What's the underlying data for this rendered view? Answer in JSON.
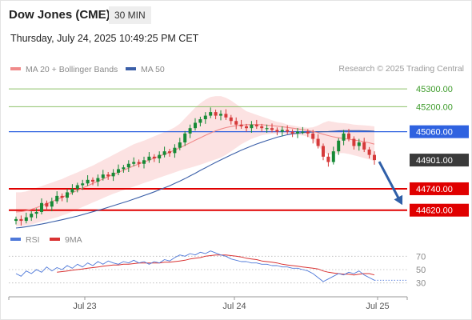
{
  "header": {
    "title": "Dow Jones (CME)",
    "timeframe": "30 MIN",
    "datetime": "Thursday, July 24, 2025 10:49:25 PM CET",
    "copyright": "Research © 2025 Trading Central"
  },
  "colors": {
    "support_red": "#e00000",
    "pivot_blue": "#2f62e0",
    "resistance_green": "#8dc06a",
    "resistance_text": "#3d9b2a",
    "ma20": "#f08a8a",
    "ma50": "#3b5fa8",
    "bollinger_fill": "#fbd8d8",
    "candle_up": "#168a36",
    "candle_down": "#d63a3a",
    "rsi": "#4f79d9",
    "rsi_ma": "#d93333",
    "arrow": "#2f5fa8",
    "last_price_box": "#3a3a3a"
  },
  "chart_data": [
    {
      "type": "candlestick",
      "legend": [
        {
          "label": "MA 20 + Bollinger Bands",
          "color": "#f08a8a"
        },
        {
          "label": "MA 50",
          "color": "#3b5fa8"
        }
      ],
      "ylim": [
        44520,
        45350
      ],
      "x_ticks": [
        "Jul 23",
        "Jul 24",
        "Jul 25"
      ],
      "levels": [
        {
          "label": "45300.00",
          "value": 45300,
          "kind": "resistance"
        },
        {
          "label": "45200.00",
          "value": 45200,
          "kind": "resistance"
        },
        {
          "label": "45060.00",
          "value": 45060,
          "kind": "pivot"
        },
        {
          "label": "44740.00",
          "value": 44740,
          "kind": "support"
        },
        {
          "label": "44620.00",
          "value": 44620,
          "kind": "support"
        }
      ],
      "last_price": {
        "label": "44901.00",
        "value": 44901
      },
      "projection": {
        "from": 44901,
        "to": 44640,
        "direction": "down"
      },
      "close": [
        44570,
        44560,
        44580,
        44600,
        44610,
        44660,
        44640,
        44670,
        44700,
        44690,
        44720,
        44740,
        44760,
        44770,
        44790,
        44780,
        44800,
        44820,
        44810,
        44830,
        44850,
        44860,
        44880,
        44890,
        44880,
        44900,
        44920,
        44910,
        44930,
        44950,
        44940,
        44970,
        45000,
        45050,
        45080,
        45110,
        45130,
        45150,
        45170,
        45150,
        45160,
        45140,
        45120,
        45100,
        45090,
        45080,
        45100,
        45090,
        45080,
        45080,
        45070,
        45060,
        45070,
        45060,
        45050,
        45060,
        45060,
        45050,
        45020,
        44980,
        44920,
        44890,
        44950,
        45010,
        45050,
        45020,
        44980,
        45000,
        44960,
        44930,
        44901
      ],
      "ma20": [
        44610,
        44612,
        44617,
        44625,
        44634,
        44645,
        44656,
        44668,
        44680,
        44692,
        44705,
        44718,
        44731,
        44744,
        44757,
        44770,
        44782,
        44795,
        44808,
        44820,
        44832,
        44844,
        44856,
        44868,
        44879,
        44890,
        44901,
        44912,
        44923,
        44934,
        44945,
        44957,
        44970,
        44984,
        44998,
        45012,
        45026,
        45040,
        45053,
        45065,
        45075,
        45083,
        45089,
        45094,
        45097,
        45099,
        45100,
        45100,
        45099,
        45097,
        45094,
        45091,
        45088,
        45084,
        45080,
        45076,
        45072,
        45067,
        45061,
        45054,
        45046,
        45038,
        45031,
        45026,
        45022,
        45018,
        45013,
        45009,
        45004,
        44998,
        44990
      ],
      "bb_upper": [
        44720,
        44720,
        44725,
        44735,
        44745,
        44755,
        44765,
        44775,
        44785,
        44795,
        44808,
        44820,
        44832,
        44845,
        44858,
        44870,
        44885,
        44900,
        44915,
        44930,
        44945,
        44960,
        44975,
        44990,
        45000,
        45010,
        45022,
        45034,
        45046,
        45058,
        45070,
        45085,
        45105,
        45135,
        45165,
        45195,
        45220,
        45240,
        45255,
        45260,
        45260,
        45250,
        45235,
        45215,
        45195,
        45175,
        45165,
        45155,
        45145,
        45135,
        45125,
        45115,
        45110,
        45100,
        45095,
        45090,
        45085,
        45082,
        45085,
        45095,
        45110,
        45120,
        45115,
        45110,
        45108,
        45105,
        45100,
        45098,
        45096,
        45094,
        45090
      ],
      "bb_lower": [
        44530,
        44530,
        44535,
        44540,
        44548,
        44556,
        44564,
        44572,
        44580,
        44590,
        44600,
        44612,
        44625,
        44638,
        44650,
        44663,
        44675,
        44688,
        44700,
        44712,
        44722,
        44732,
        44742,
        44752,
        44762,
        44772,
        44782,
        44792,
        44802,
        44812,
        44822,
        44832,
        44842,
        44850,
        44858,
        44866,
        44875,
        44885,
        44895,
        44905,
        44915,
        44930,
        44950,
        44970,
        44990,
        45005,
        45020,
        45030,
        45040,
        45045,
        45048,
        45050,
        45050,
        45048,
        45045,
        45042,
        45038,
        45033,
        45010,
        44980,
        44950,
        44930,
        44935,
        44940,
        44940,
        44935,
        44928,
        44920,
        44912,
        44905,
        44895
      ],
      "ma50": [
        44520,
        44523,
        44527,
        44532,
        44537,
        44542,
        44548,
        44554,
        44560,
        44566,
        44573,
        44580,
        44587,
        44595,
        44603,
        44611,
        44619,
        44627,
        44636,
        44645,
        44654,
        44663,
        44672,
        44682,
        44692,
        44702,
        44712,
        44723,
        44734,
        44745,
        44757,
        44770,
        44783,
        44797,
        44812,
        44827,
        44843,
        44858,
        44873,
        44888,
        44902,
        44916,
        44930,
        44943,
        44956,
        44968,
        44980,
        44991,
        45001,
        45011,
        45020,
        45029,
        45036,
        45043,
        45048,
        45052,
        45055,
        45057,
        45058,
        45059,
        45060,
        45061,
        45063,
        45065,
        45066,
        45066,
        45066,
        45066,
        45065,
        45064,
        45063
      ]
    },
    {
      "type": "line",
      "legend": [
        {
          "label": "RSI",
          "color": "#4f79d9"
        },
        {
          "label": "9MA",
          "color": "#d93333"
        }
      ],
      "ylim": [
        20,
        80
      ],
      "y_ticks": [
        70,
        50,
        30
      ],
      "rsi": [
        44,
        40,
        48,
        44,
        50,
        46,
        54,
        48,
        53,
        50,
        56,
        52,
        58,
        54,
        60,
        56,
        62,
        58,
        63,
        60,
        58,
        62,
        60,
        64,
        60,
        62,
        58,
        62,
        60,
        65,
        63,
        68,
        72,
        70,
        74,
        72,
        76,
        74,
        78,
        75,
        72,
        70,
        66,
        64,
        62,
        62,
        60,
        60,
        58,
        58,
        56,
        56,
        54,
        54,
        52,
        52,
        50,
        48,
        44,
        38,
        32,
        36,
        40,
        44,
        42,
        46,
        44,
        48,
        42,
        38,
        34
      ],
      "rsi_ma": [
        null,
        null,
        null,
        null,
        null,
        null,
        null,
        null,
        46,
        47,
        48,
        49,
        50,
        51,
        52,
        53,
        54,
        55,
        56,
        57,
        57,
        58,
        58,
        59,
        60,
        60,
        60,
        60,
        60,
        61,
        61,
        62,
        63,
        64,
        66,
        67,
        68,
        70,
        71,
        72,
        72,
        72,
        71,
        70,
        69,
        67,
        66,
        65,
        63,
        62,
        61,
        60,
        58,
        57,
        56,
        55,
        54,
        53,
        52,
        51,
        48,
        46,
        45,
        44,
        43,
        43,
        42,
        43,
        44,
        44,
        42
      ]
    }
  ]
}
